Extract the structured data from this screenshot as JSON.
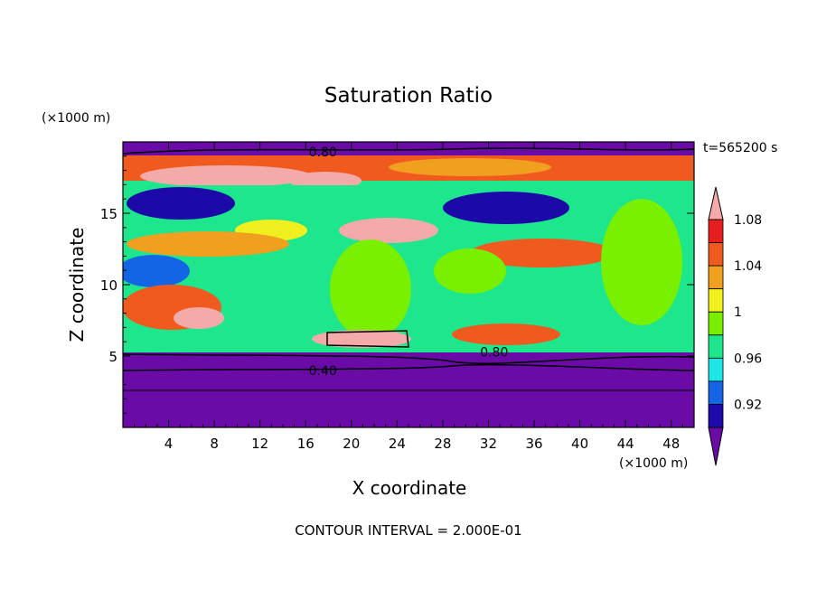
{
  "chart_data": {
    "type": "contour",
    "title": "Saturation Ratio",
    "xlabel": "X coordinate",
    "ylabel": "Z coordinate",
    "x_unit": "(×1000 m)",
    "y_unit": "(×1000 m)",
    "time_label": "t=565200 s",
    "footer": "CONTOUR INTERVAL = 2.000E-01",
    "xlim": [
      0,
      50
    ],
    "ylim": [
      0,
      20
    ],
    "x_ticks": [
      "4",
      "8",
      "12",
      "16",
      "20",
      "24",
      "28",
      "32",
      "36",
      "40",
      "44",
      "48"
    ],
    "y_ticks": [
      "5",
      "10",
      "15"
    ],
    "contour_labels": [
      {
        "text": "0.80",
        "x": 17.5,
        "z": 19.3
      },
      {
        "text": "0.80",
        "x": 32.5,
        "z": 5.3
      },
      {
        "text": "0.40",
        "x": 17.5,
        "z": 4.0
      }
    ],
    "colorbar": {
      "tick_labels": [
        "0.92",
        "0.96",
        "1",
        "1.04",
        "1.08"
      ],
      "colors": [
        "#6a0ba8",
        "#1c0aa8",
        "#1464e6",
        "#1ee6e6",
        "#1ee68c",
        "#78f000",
        "#f0f01e",
        "#f0a01e",
        "#f05a1e",
        "#e61e1e",
        "#f5aaaa"
      ]
    }
  }
}
